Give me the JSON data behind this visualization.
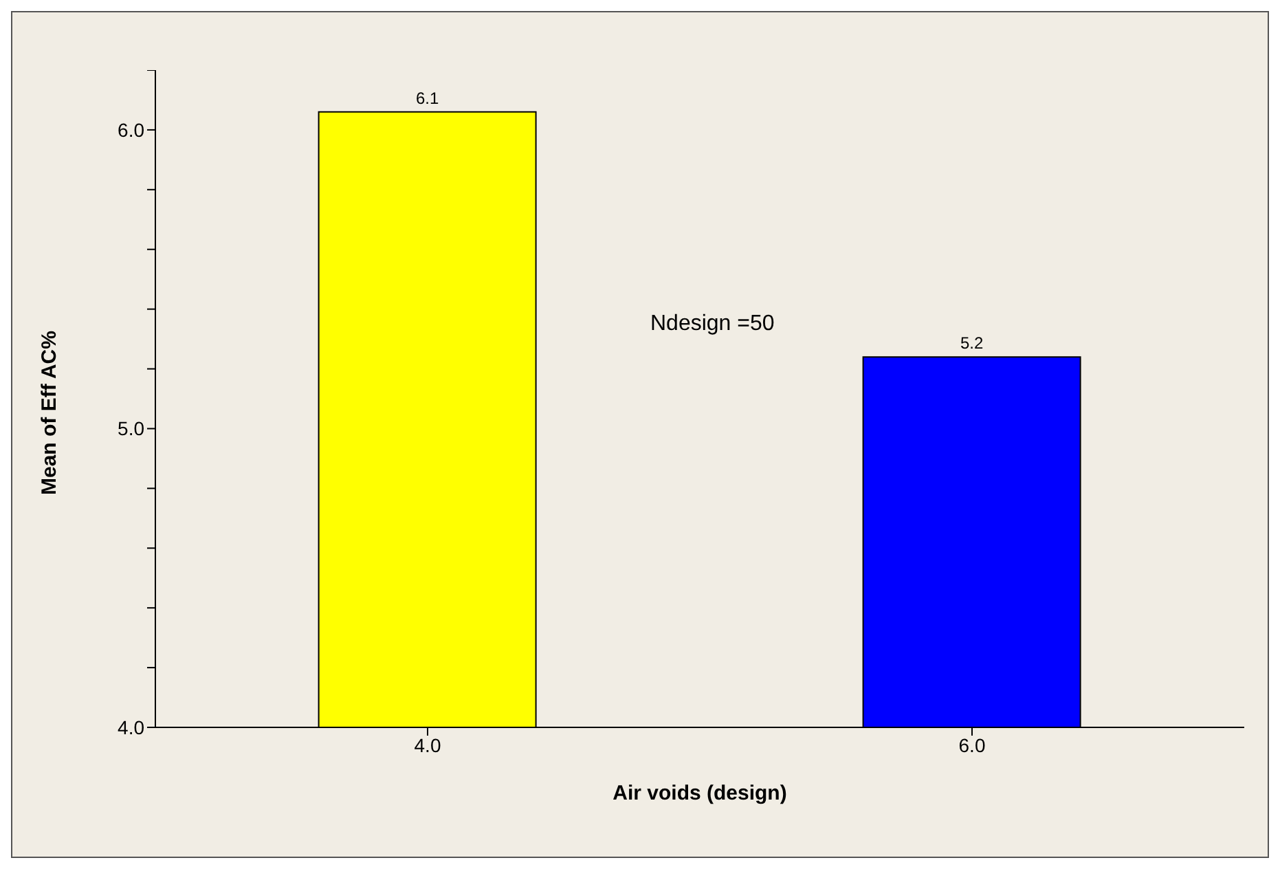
{
  "chart_data": {
    "type": "bar",
    "xlabel": "Air voids (design)",
    "ylabel": "Mean of Eff AC%",
    "categories": [
      "4.0",
      "6.0"
    ],
    "values": [
      6.06,
      5.24
    ],
    "colors": [
      "#ffff00",
      "#0000ff"
    ],
    "value_labels": [
      "6.1",
      "5.2"
    ],
    "ylim": [
      4,
      6.2
    ],
    "yticks": [
      {
        "value": 4,
        "label": "4.0"
      },
      {
        "value": 4.2,
        "label": null
      },
      {
        "value": 4.4,
        "label": null
      },
      {
        "value": 4.6,
        "label": null
      },
      {
        "value": 4.8,
        "label": null
      },
      {
        "value": 5,
        "label": "5.0"
      },
      {
        "value": 5.2,
        "label": null
      },
      {
        "value": 5.4,
        "label": null
      },
      {
        "value": 5.6,
        "label": null
      },
      {
        "value": 5.8,
        "label": null
      },
      {
        "value": 6,
        "label": "6.0"
      },
      {
        "value": 6.2,
        "label": null
      }
    ],
    "annotations": [
      "Ndesign =50"
    ],
    "grid": false,
    "legend": false
  }
}
